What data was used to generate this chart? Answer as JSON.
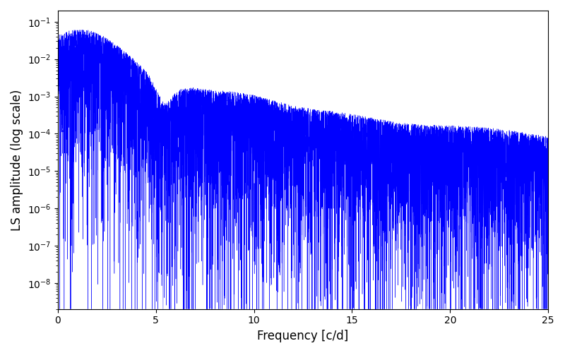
{
  "xlabel": "Frequency [c/d]",
  "ylabel": "LS amplitude (log scale)",
  "line_color": "#0000ff",
  "xlim": [
    0,
    25
  ],
  "ylim_log": [
    -8.7,
    -0.7
  ],
  "xmin": 0.0,
  "xmax": 25.0,
  "n_points": 8000,
  "seed": 7,
  "background_color": "#ffffff",
  "figsize": [
    8.0,
    5.0
  ],
  "dpi": 100,
  "linewidth": 0.3
}
